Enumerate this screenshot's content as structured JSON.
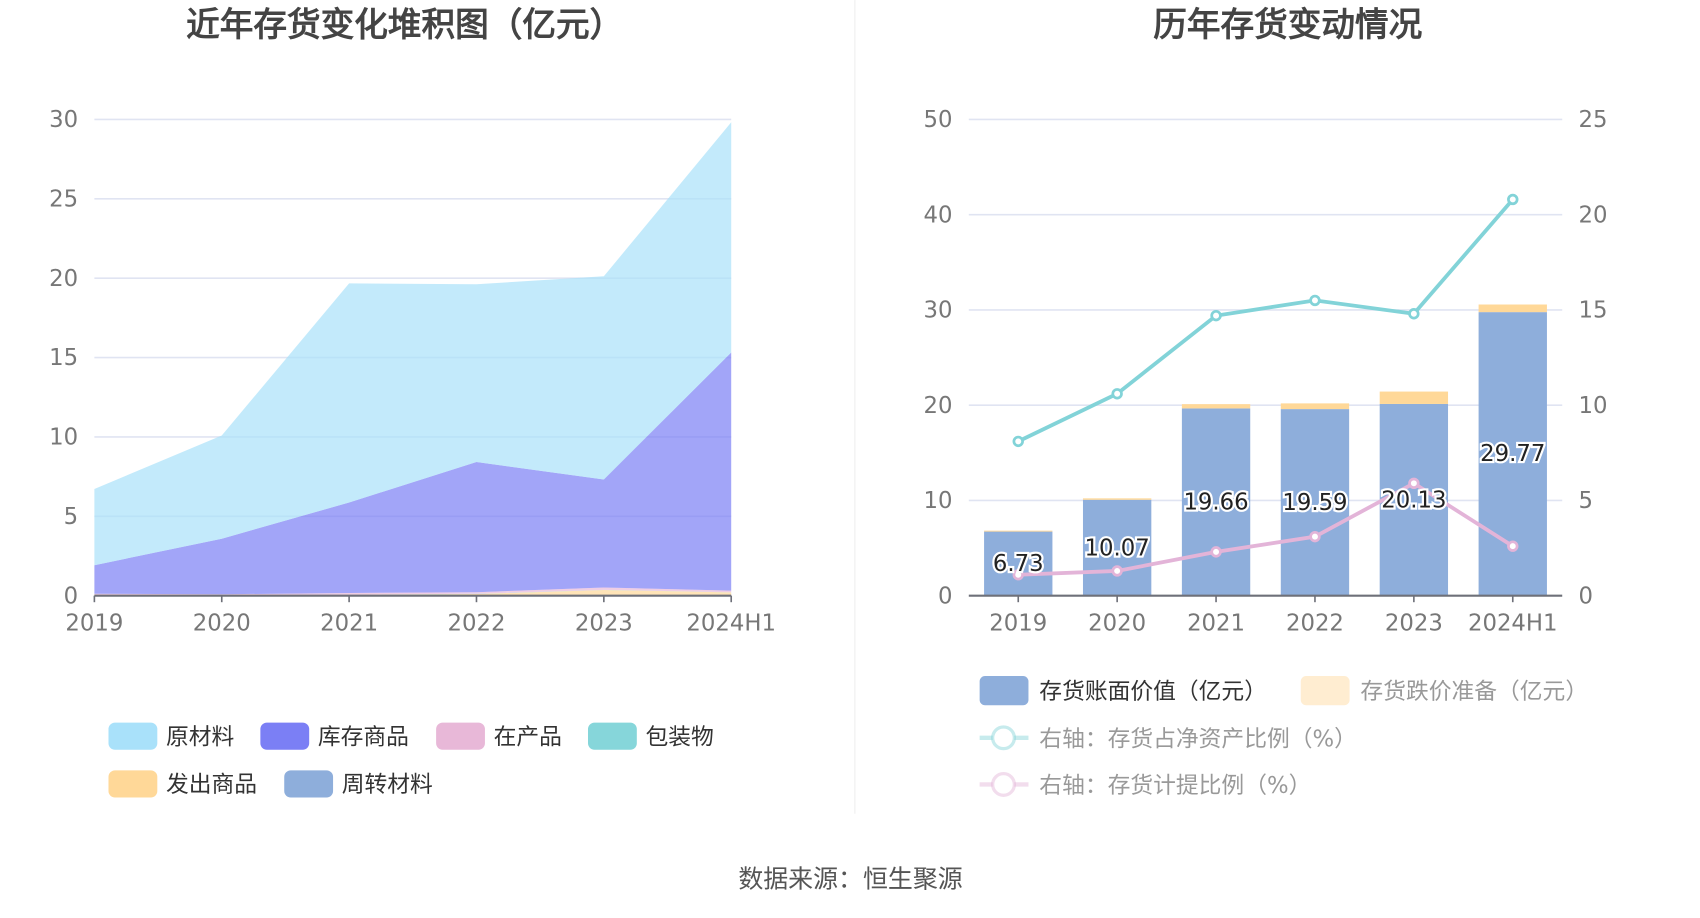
{
  "source": "数据来源：恒生聚源",
  "chart_data": [
    {
      "type": "area",
      "stacked": true,
      "title": "近年存货变化堆积图（亿元）",
      "categories": [
        "2019",
        "2020",
        "2021",
        "2022",
        "2023",
        "2024H1"
      ],
      "ylim": [
        0,
        30
      ],
      "yticks": [
        0,
        5,
        10,
        15,
        20,
        25,
        30
      ],
      "grid": true,
      "legend_position": "bottom",
      "series": [
        {
          "name": "周转材料",
          "color": "#8eaedb",
          "values": [
            0.01,
            0.01,
            0.01,
            0.01,
            0.01,
            0.01
          ]
        },
        {
          "name": "发出商品",
          "color": "#ffd898",
          "values": [
            0.02,
            0.02,
            0.05,
            0.1,
            0.35,
            0.2
          ]
        },
        {
          "name": "包装物",
          "color": "#86d6da",
          "values": [
            0.01,
            0.01,
            0.01,
            0.01,
            0.01,
            0.01
          ]
        },
        {
          "name": "在产品",
          "color": "#e8b8d8",
          "values": [
            0.08,
            0.05,
            0.1,
            0.1,
            0.15,
            0.1
          ]
        },
        {
          "name": "库存商品",
          "color": "#7b7ff5",
          "values": [
            1.8,
            3.5,
            5.7,
            8.2,
            6.8,
            15.0
          ]
        },
        {
          "name": "原材料",
          "color": "#a9e1fa",
          "values": [
            4.8,
            6.5,
            13.8,
            11.2,
            12.8,
            14.5
          ]
        }
      ],
      "legend_order": [
        "原材料",
        "库存商品",
        "在产品",
        "包装物",
        "发出商品",
        "周转材料"
      ]
    },
    {
      "type": "bar+line",
      "title": "历年存货变动情况",
      "categories": [
        "2019",
        "2020",
        "2021",
        "2022",
        "2023",
        "2024H1"
      ],
      "ylim_left": [
        0,
        50
      ],
      "yticks_left": [
        0,
        10,
        20,
        30,
        40,
        50
      ],
      "ylim_right": [
        0,
        25
      ],
      "yticks_right": [
        0,
        5,
        10,
        15,
        20,
        25
      ],
      "grid": true,
      "legend_position": "bottom",
      "bars": [
        {
          "name": "存货账面价值（亿元）",
          "color": "#8eaedb",
          "values": [
            6.73,
            10.07,
            19.66,
            19.59,
            20.13,
            29.77
          ],
          "labels": [
            "6.73",
            "10.07",
            "19.66",
            "19.59",
            "20.13",
            "29.77"
          ],
          "legend_active": true
        },
        {
          "name": "存货跌价准备（亿元）",
          "color": "#ffd898",
          "values": [
            0.1,
            0.15,
            0.45,
            0.6,
            1.3,
            0.8
          ],
          "legend_active": false
        }
      ],
      "lines": [
        {
          "name": "右轴：存货占净资产比例（%）",
          "color": "#82d3d8",
          "values": [
            8.1,
            10.6,
            14.7,
            15.5,
            14.8,
            20.8
          ],
          "legend_active": false
        },
        {
          "name": "右轴：存货计提比例（%）",
          "color": "#e3b4d8",
          "values": [
            1.1,
            1.3,
            2.3,
            3.1,
            5.9,
            2.6
          ],
          "legend_active": false
        }
      ]
    }
  ]
}
